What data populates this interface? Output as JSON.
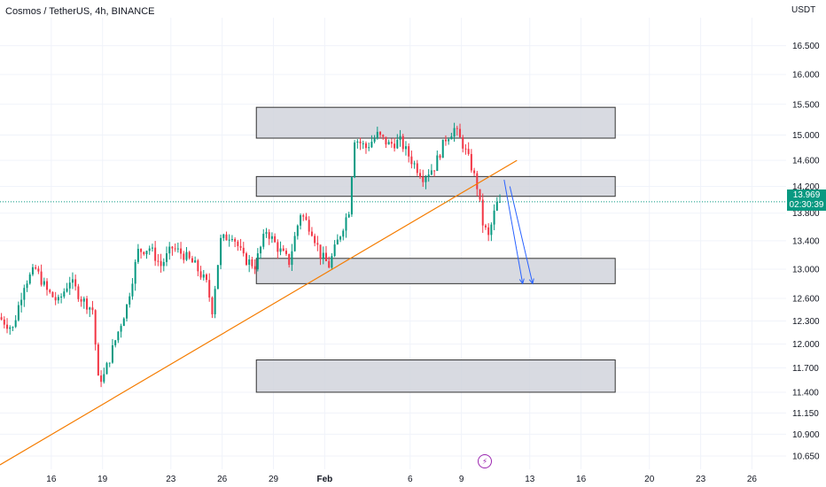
{
  "header": {
    "symbol_title": "Cosmos / TetherUS, 4h, BINANCE",
    "currency": "USDT"
  },
  "price_badge": {
    "price": "13.969",
    "countdown": "02:30:39",
    "color": "#089981"
  },
  "event_icon": {
    "name": "lightning-icon",
    "glyph": "⚡"
  },
  "colors": {
    "up": "#089981",
    "down": "#f23645",
    "trendline": "#f57c00",
    "arrows": "#2962ff",
    "zone_fill": "#d1d4dc",
    "zone_border": "#333333",
    "current_price_line": "#089981",
    "grid": "#f0f3fa"
  },
  "chart_data": {
    "type": "candlestick",
    "title": "Cosmos / TetherUS, 4h, BINANCE",
    "y_axis": {
      "unit": "USDT",
      "scale": "log",
      "range": [
        10.5,
        17.0
      ],
      "tick_labels": [
        "16.500",
        "16.000",
        "15.500",
        "15.000",
        "14.600",
        "14.200",
        "13.800",
        "13.400",
        "13.000",
        "12.600",
        "12.300",
        "12.000",
        "11.700",
        "11.400",
        "11.150",
        "10.900",
        "10.650"
      ]
    },
    "x_axis": {
      "tick_labels": [
        "16",
        "19",
        "23",
        "26",
        "29",
        "Feb",
        "6",
        "9",
        "13",
        "16",
        "20",
        "23",
        "26"
      ],
      "tick_dates": [
        "2023-01-16",
        "2023-01-19",
        "2023-01-23",
        "2023-01-26",
        "2023-01-29",
        "2023-02-01",
        "2023-02-06",
        "2023-02-09",
        "2023-02-13",
        "2023-02-16",
        "2023-02-20",
        "2023-02-23",
        "2023-02-26"
      ],
      "range": [
        "2023-01-13",
        "2023-02-28"
      ]
    },
    "grid": true,
    "current_price": 13.969,
    "price_path": [
      [
        "2023-01-13T00:00",
        12.35
      ],
      [
        "2023-01-13T20:00",
        12.2
      ],
      [
        "2023-01-14T12:00",
        12.8
      ],
      [
        "2023-01-15T04:00",
        13.0
      ],
      [
        "2023-01-15T20:00",
        12.7
      ],
      [
        "2023-01-16T12:00",
        12.55
      ],
      [
        "2023-01-17T04:00",
        12.85
      ],
      [
        "2023-01-17T20:00",
        12.6
      ],
      [
        "2023-01-18T12:00",
        12.45
      ],
      [
        "2023-01-18T20:00",
        11.55
      ],
      [
        "2023-01-19T04:00",
        11.6
      ],
      [
        "2023-01-19T20:00",
        12.05
      ],
      [
        "2023-01-20T12:00",
        12.5
      ],
      [
        "2023-01-21T04:00",
        13.25
      ],
      [
        "2023-01-21T20:00",
        13.3
      ],
      [
        "2023-01-22T12:00",
        13.05
      ],
      [
        "2023-01-23T04:00",
        13.3
      ],
      [
        "2023-01-23T20:00",
        13.2
      ],
      [
        "2023-01-24T12:00",
        13.05
      ],
      [
        "2023-01-25T04:00",
        12.8
      ],
      [
        "2023-01-25T12:00",
        12.45
      ],
      [
        "2023-01-26T00:00",
        13.4
      ],
      [
        "2023-01-26T16:00",
        13.5
      ],
      [
        "2023-01-27T08:00",
        13.15
      ],
      [
        "2023-01-28T00:00",
        13.05
      ],
      [
        "2023-01-28T16:00",
        13.55
      ],
      [
        "2023-01-29T08:00",
        13.3
      ],
      [
        "2023-01-30T00:00",
        13.1
      ],
      [
        "2023-01-30T16:00",
        13.8
      ],
      [
        "2023-01-31T08:00",
        13.55
      ],
      [
        "2023-01-31T20:00",
        13.2
      ],
      [
        "2023-02-01T08:00",
        13.05
      ],
      [
        "2023-02-02T00:00",
        13.5
      ],
      [
        "2023-02-02T12:00",
        13.85
      ],
      [
        "2023-02-02T20:00",
        14.95
      ],
      [
        "2023-02-03T12:00",
        14.8
      ],
      [
        "2023-02-04T04:00",
        15.0
      ],
      [
        "2023-02-04T20:00",
        14.85
      ],
      [
        "2023-02-05T12:00",
        14.9
      ],
      [
        "2023-02-06T04:00",
        14.6
      ],
      [
        "2023-02-06T20:00",
        14.35
      ],
      [
        "2023-02-07T12:00",
        14.5
      ],
      [
        "2023-02-08T04:00",
        14.95
      ],
      [
        "2023-02-08T16:00",
        15.1
      ],
      [
        "2023-02-09T04:00",
        14.85
      ],
      [
        "2023-02-09T16:00",
        14.5
      ],
      [
        "2023-02-10T00:00",
        14.2
      ],
      [
        "2023-02-10T08:00",
        13.65
      ],
      [
        "2023-02-10T16:00",
        13.45
      ],
      [
        "2023-02-11T04:00",
        13.969
      ]
    ],
    "zones": [
      {
        "name": "zone-1",
        "low": 14.95,
        "high": 15.45,
        "from": "2023-01-28",
        "to": "2023-02-18"
      },
      {
        "name": "zone-2",
        "low": 14.05,
        "high": 14.35,
        "from": "2023-01-28",
        "to": "2023-02-18"
      },
      {
        "name": "zone-3",
        "low": 12.8,
        "high": 13.15,
        "from": "2023-01-28",
        "to": "2023-02-18"
      },
      {
        "name": "zone-4",
        "low": 11.4,
        "high": 11.8,
        "from": "2023-01-28",
        "to": "2023-02-18"
      }
    ],
    "trendline": {
      "from": [
        "2023-01-13T00:00",
        10.55
      ],
      "to": [
        "2023-02-12T06:00",
        14.6
      ]
    },
    "arrows": [
      {
        "from": [
          "2023-02-11T12:00",
          14.3
        ],
        "to": [
          "2023-02-12T14:00",
          12.8
        ]
      },
      {
        "from": [
          "2023-02-11T20:00",
          14.2
        ],
        "to": [
          "2023-02-13T04:00",
          12.8
        ]
      }
    ]
  }
}
